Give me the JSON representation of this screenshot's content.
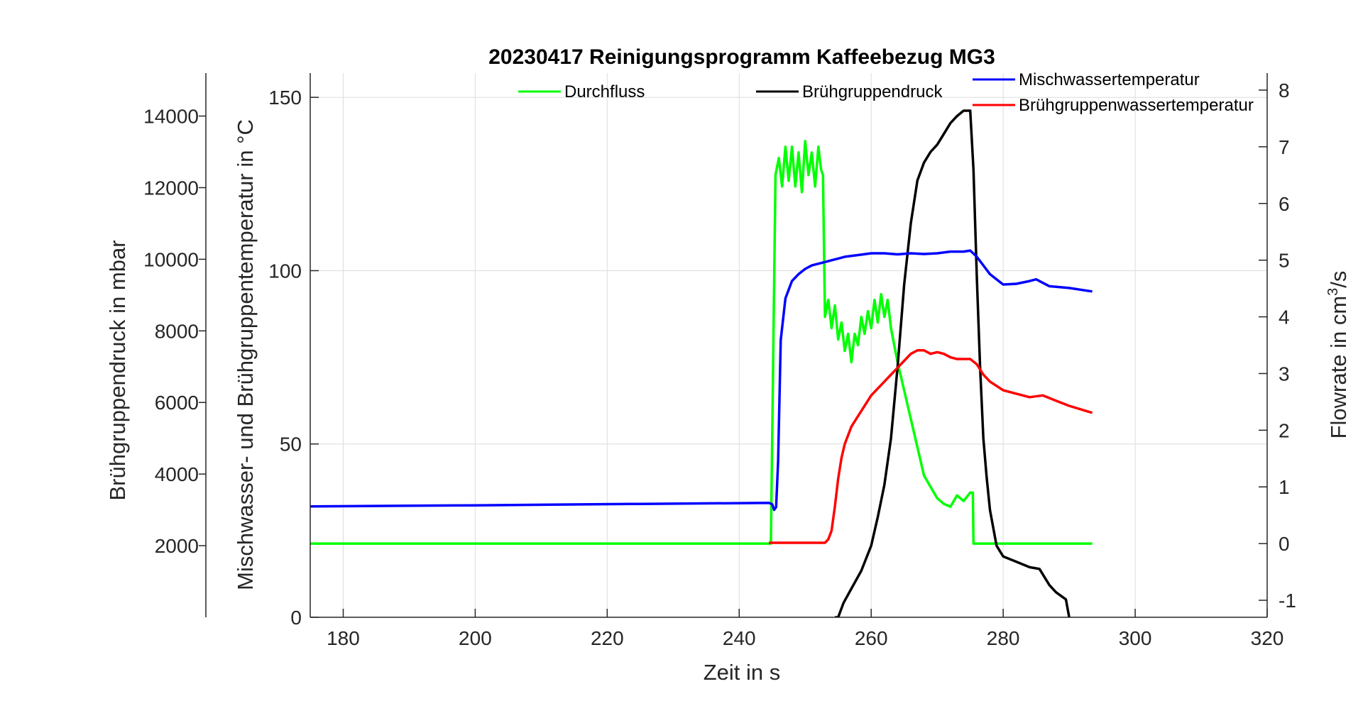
{
  "chart_data": {
    "type": "line",
    "title": "20230417 Reinigungsprogramm  Kaffeebezug MG3",
    "xlabel": "Zeit in s",
    "xlim": [
      175,
      320
    ],
    "xticks": [
      180,
      200,
      220,
      240,
      260,
      280,
      300,
      320
    ],
    "grid": true,
    "axes": {
      "left": {
        "label": "Brühgruppendruck in mbar",
        "ylim": [
          0,
          15200
        ],
        "ticks": [
          2000,
          4000,
          6000,
          8000,
          10000,
          12000,
          14000
        ]
      },
      "middle": {
        "label": "Mischwasser- und Brühgruppentemperatur in °C",
        "ylim": [
          0,
          157
        ],
        "ticks": [
          0,
          50,
          100,
          150
        ]
      },
      "right": {
        "label_prefix": "Flowrate in cm",
        "label_sup": "3",
        "label_suffix": "/s",
        "ylim": [
          -1.3,
          8.3
        ],
        "ticks": [
          -1,
          0,
          1,
          2,
          3,
          4,
          5,
          6,
          7,
          8
        ]
      }
    },
    "legend": [
      {
        "name": "Durchfluss",
        "color": "#00ff00"
      },
      {
        "name": "Brühgruppendruck",
        "color": "#000000"
      },
      {
        "name": "Mischwassertemperatur",
        "color": "#0000ff"
      },
      {
        "name": "Brühgruppenwassertemperatur",
        "color": "#ff0000"
      }
    ],
    "series": [
      {
        "name": "Durchfluss",
        "axis": "right",
        "color": "#00ff00",
        "x": [
          175,
          200,
          244.7,
          244.8,
          245.5,
          246,
          246.5,
          247,
          247.5,
          248,
          248.5,
          249,
          249.5,
          250,
          250.5,
          251,
          251.5,
          252,
          252.4,
          252.7,
          253,
          253.5,
          254,
          254.5,
          255,
          255.5,
          256,
          256.5,
          257,
          257.5,
          258,
          258.5,
          259,
          259.5,
          260,
          260.5,
          261,
          261.5,
          262,
          262.5,
          263,
          263.5,
          264,
          265,
          266,
          267,
          268,
          269,
          270,
          271,
          272,
          273,
          274,
          275,
          275.4,
          275.5,
          293.5
        ],
        "y": [
          0,
          0,
          0,
          0,
          6.5,
          6.8,
          6.3,
          7.0,
          6.4,
          7.0,
          6.3,
          6.9,
          6.2,
          7.1,
          6.5,
          6.9,
          6.3,
          7.0,
          6.6,
          6.5,
          4.0,
          4.3,
          3.8,
          4.2,
          3.6,
          3.9,
          3.4,
          3.7,
          3.2,
          3.7,
          3.5,
          4.0,
          3.7,
          4.1,
          3.8,
          4.3,
          3.9,
          4.4,
          4.0,
          4.3,
          3.8,
          3.5,
          3.2,
          2.7,
          2.2,
          1.7,
          1.2,
          1.0,
          0.8,
          0.7,
          0.65,
          0.85,
          0.75,
          0.9,
          0.9,
          0,
          0
        ]
      },
      {
        "name": "Brühgruppendruck",
        "axis": "left",
        "color": "#000000",
        "x": [
          254.5,
          255,
          255.8,
          257,
          258.5,
          260,
          261,
          262,
          263,
          264,
          265,
          266,
          267,
          268,
          269,
          270,
          271,
          272,
          273,
          274,
          275,
          275.5,
          276,
          276.5,
          277,
          277.5,
          278,
          279,
          280,
          282,
          284,
          285.5,
          287,
          288,
          289.5,
          290,
          290.4
        ],
        "y": [
          0,
          0,
          400,
          800,
          1300,
          2000,
          2800,
          3700,
          5000,
          7000,
          9300,
          11000,
          12200,
          12700,
          13000,
          13200,
          13500,
          13800,
          14000,
          14150,
          14150,
          12500,
          9500,
          7000,
          5000,
          3900,
          3000,
          2000,
          1700,
          1550,
          1400,
          1350,
          900,
          700,
          500,
          0,
          -800
        ]
      },
      {
        "name": "Mischwassertemperatur",
        "axis": "middle",
        "color": "#0000ff",
        "x": [
          175,
          200,
          225,
          244.5,
          245,
          245.3,
          245.6,
          245.9,
          246.3,
          247,
          248,
          249,
          250,
          251,
          252,
          253,
          254,
          255,
          256,
          258,
          260,
          262,
          264,
          266,
          268,
          270,
          272,
          274,
          275,
          276,
          278,
          280,
          282,
          284,
          285,
          286,
          287,
          290,
          293.5
        ],
        "y": [
          32,
          32.3,
          32.7,
          33,
          32.6,
          31,
          31.8,
          45,
          80,
          92,
          97,
          99,
          100.5,
          101.5,
          102,
          102.5,
          103,
          103.5,
          104,
          104.5,
          105,
          105,
          104.7,
          105,
          104.8,
          105,
          105.5,
          105.5,
          105.8,
          104,
          99,
          96,
          96.2,
          97,
          97.5,
          96.5,
          95.5,
          95,
          94
        ]
      },
      {
        "name": "Brühgruppenwassertemperatur",
        "axis": "middle",
        "color": "#ff0000",
        "x": [
          244.5,
          253,
          253.5,
          254,
          254.5,
          255,
          255.5,
          256,
          257,
          258,
          259,
          260,
          261,
          262,
          263,
          264,
          265,
          266,
          267,
          268,
          269,
          270,
          271,
          272,
          273,
          274,
          275,
          276,
          277,
          278,
          280,
          282,
          284,
          286,
          288,
          290,
          293.5
        ],
        "y": [
          21.5,
          21.5,
          22.5,
          25,
          32,
          40,
          46,
          50,
          55,
          58,
          61,
          64,
          66,
          68,
          70,
          72,
          74,
          76,
          77,
          77,
          76,
          76.5,
          76,
          75,
          74.5,
          74.5,
          74.5,
          73,
          70,
          68,
          65.5,
          64.5,
          63.5,
          64,
          62.5,
          61,
          59
        ]
      }
    ]
  }
}
